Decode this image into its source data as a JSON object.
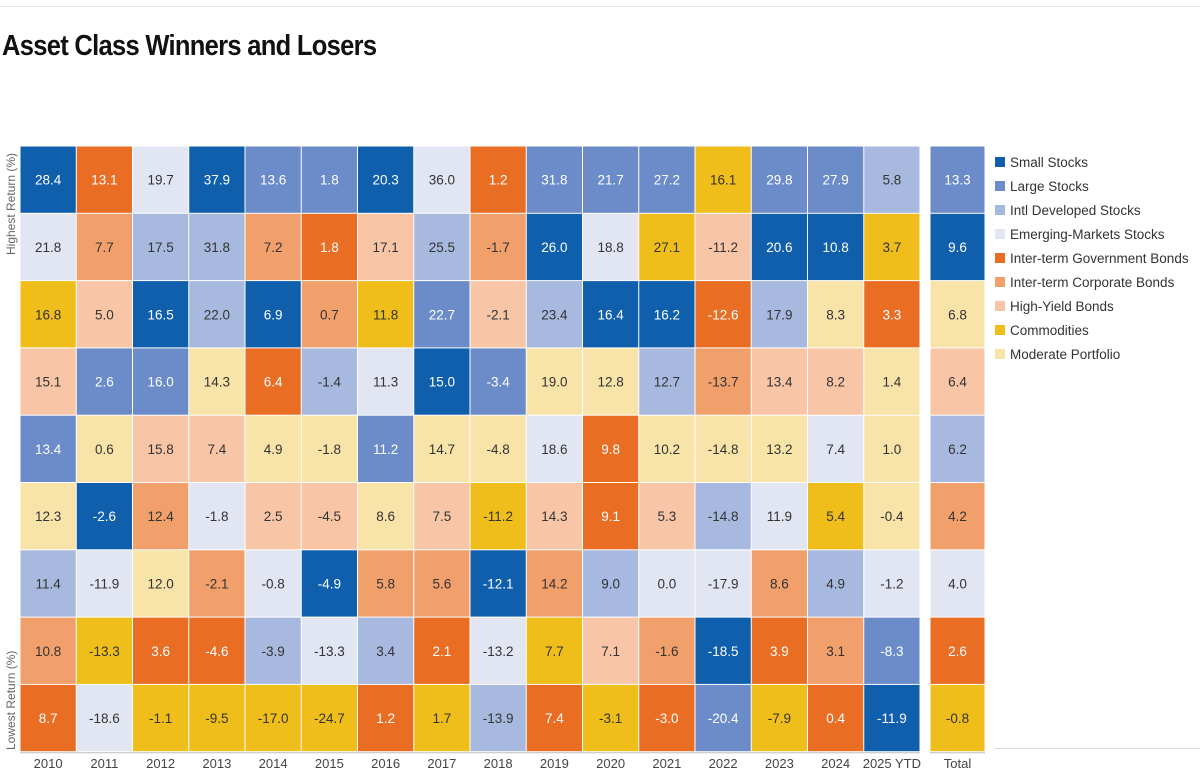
{
  "title": "Asset Class Winners and Losers",
  "labels": {
    "top_axis": "Highest Return (%)",
    "bottom_axis": "Lowest Return (%)"
  },
  "legend": [
    {
      "key": "small",
      "label": "Small Stocks",
      "color": "#0f5fad"
    },
    {
      "key": "large",
      "label": "Large Stocks",
      "color": "#6b8cc9"
    },
    {
      "key": "intl",
      "label": "Intl Developed Stocks",
      "color": "#a8b9e0"
    },
    {
      "key": "em",
      "label": "Emerging-Markets Stocks",
      "color": "#e1e6f2"
    },
    {
      "key": "govt",
      "label": "Inter-term Government Bonds",
      "color": "#ea6d24"
    },
    {
      "key": "corp",
      "label": "Inter-term Corporate Bonds",
      "color": "#f1a06b"
    },
    {
      "key": "hy",
      "label": "High-Yield Bonds",
      "color": "#f8c6a6"
    },
    {
      "key": "comm",
      "label": "Commodities",
      "color": "#efbe1b"
    },
    {
      "key": "mod",
      "label": "Moderate Portfolio",
      "color": "#f8e3a9"
    }
  ],
  "chart_data": {
    "type": "table",
    "title": "Asset Class Winners and Losers",
    "columns": [
      "2010",
      "2011",
      "2012",
      "2013",
      "2014",
      "2015",
      "2016",
      "2017",
      "2018",
      "2019",
      "2020",
      "2021",
      "2022",
      "2023",
      "2024",
      "2025 YTD",
      "Total"
    ],
    "rows": [
      [
        {
          "v": "28.4",
          "c": "small"
        },
        {
          "v": "13.1",
          "c": "govt"
        },
        {
          "v": "19.7",
          "c": "em"
        },
        {
          "v": "37.9",
          "c": "small"
        },
        {
          "v": "13.6",
          "c": "large"
        },
        {
          "v": "1.8",
          "c": "large"
        },
        {
          "v": "20.3",
          "c": "small"
        },
        {
          "v": "36.0",
          "c": "em"
        },
        {
          "v": "1.2",
          "c": "govt"
        },
        {
          "v": "31.8",
          "c": "large"
        },
        {
          "v": "21.7",
          "c": "large"
        },
        {
          "v": "27.2",
          "c": "large"
        },
        {
          "v": "16.1",
          "c": "comm"
        },
        {
          "v": "29.8",
          "c": "large"
        },
        {
          "v": "27.9",
          "c": "large"
        },
        {
          "v": "5.8",
          "c": "intl"
        },
        {
          "v": "13.3",
          "c": "large"
        }
      ],
      [
        {
          "v": "21.8",
          "c": "em"
        },
        {
          "v": "7.7",
          "c": "corp"
        },
        {
          "v": "17.5",
          "c": "intl"
        },
        {
          "v": "31.8",
          "c": "intl"
        },
        {
          "v": "7.2",
          "c": "corp"
        },
        {
          "v": "1.8",
          "c": "govt"
        },
        {
          "v": "17.1",
          "c": "hy"
        },
        {
          "v": "25.5",
          "c": "intl"
        },
        {
          "v": "-1.7",
          "c": "corp"
        },
        {
          "v": "26.0",
          "c": "small"
        },
        {
          "v": "18.8",
          "c": "em"
        },
        {
          "v": "27.1",
          "c": "comm"
        },
        {
          "v": "-11.2",
          "c": "hy"
        },
        {
          "v": "20.6",
          "c": "small"
        },
        {
          "v": "10.8",
          "c": "small"
        },
        {
          "v": "3.7",
          "c": "comm"
        },
        {
          "v": "9.6",
          "c": "small"
        }
      ],
      [
        {
          "v": "16.8",
          "c": "comm"
        },
        {
          "v": "5.0",
          "c": "hy"
        },
        {
          "v": "16.5",
          "c": "small"
        },
        {
          "v": "22.0",
          "c": "intl"
        },
        {
          "v": "6.9",
          "c": "small"
        },
        {
          "v": "0.7",
          "c": "corp"
        },
        {
          "v": "11.8",
          "c": "comm"
        },
        {
          "v": "22.7",
          "c": "large"
        },
        {
          "v": "-2.1",
          "c": "hy"
        },
        {
          "v": "23.4",
          "c": "intl"
        },
        {
          "v": "16.4",
          "c": "small"
        },
        {
          "v": "16.2",
          "c": "small"
        },
        {
          "v": "-12.6",
          "c": "govt"
        },
        {
          "v": "17.9",
          "c": "intl"
        },
        {
          "v": "8.3",
          "c": "mod"
        },
        {
          "v": "3.3",
          "c": "govt"
        },
        {
          "v": "6.8",
          "c": "mod"
        }
      ],
      [
        {
          "v": "15.1",
          "c": "hy"
        },
        {
          "v": "2.6",
          "c": "large"
        },
        {
          "v": "16.0",
          "c": "large"
        },
        {
          "v": "14.3",
          "c": "mod"
        },
        {
          "v": "6.4",
          "c": "govt"
        },
        {
          "v": "-1.4",
          "c": "intl"
        },
        {
          "v": "11.3",
          "c": "em"
        },
        {
          "v": "15.0",
          "c": "small"
        },
        {
          "v": "-3.4",
          "c": "large"
        },
        {
          "v": "19.0",
          "c": "mod"
        },
        {
          "v": "12.8",
          "c": "mod"
        },
        {
          "v": "12.7",
          "c": "intl"
        },
        {
          "v": "-13.7",
          "c": "corp"
        },
        {
          "v": "13.4",
          "c": "hy"
        },
        {
          "v": "8.2",
          "c": "hy"
        },
        {
          "v": "1.4",
          "c": "mod"
        },
        {
          "v": "6.4",
          "c": "hy"
        }
      ],
      [
        {
          "v": "13.4",
          "c": "large"
        },
        {
          "v": "0.6",
          "c": "mod"
        },
        {
          "v": "15.8",
          "c": "hy"
        },
        {
          "v": "7.4",
          "c": "hy"
        },
        {
          "v": "4.9",
          "c": "mod"
        },
        {
          "v": "-1.8",
          "c": "mod"
        },
        {
          "v": "11.2",
          "c": "large"
        },
        {
          "v": "14.7",
          "c": "mod"
        },
        {
          "v": "-4.8",
          "c": "mod"
        },
        {
          "v": "18.6",
          "c": "em"
        },
        {
          "v": "9.8",
          "c": "govt"
        },
        {
          "v": "10.2",
          "c": "mod"
        },
        {
          "v": "-14.8",
          "c": "mod"
        },
        {
          "v": "13.2",
          "c": "mod"
        },
        {
          "v": "7.4",
          "c": "em"
        },
        {
          "v": "1.0",
          "c": "mod"
        },
        {
          "v": "6.2",
          "c": "intl"
        }
      ],
      [
        {
          "v": "12.3",
          "c": "mod"
        },
        {
          "v": "-2.6",
          "c": "small"
        },
        {
          "v": "12.4",
          "c": "corp"
        },
        {
          "v": "-1.8",
          "c": "em"
        },
        {
          "v": "2.5",
          "c": "hy"
        },
        {
          "v": "-4.5",
          "c": "hy"
        },
        {
          "v": "8.6",
          "c": "mod"
        },
        {
          "v": "7.5",
          "c": "hy"
        },
        {
          "v": "-11.2",
          "c": "comm"
        },
        {
          "v": "14.3",
          "c": "hy"
        },
        {
          "v": "9.1",
          "c": "govt"
        },
        {
          "v": "5.3",
          "c": "hy"
        },
        {
          "v": "-14.8",
          "c": "intl"
        },
        {
          "v": "11.9",
          "c": "em"
        },
        {
          "v": "5.4",
          "c": "comm"
        },
        {
          "v": "-0.4",
          "c": "mod"
        },
        {
          "v": "4.2",
          "c": "corp"
        }
      ],
      [
        {
          "v": "11.4",
          "c": "intl"
        },
        {
          "v": "-11.9",
          "c": "em"
        },
        {
          "v": "12.0",
          "c": "mod"
        },
        {
          "v": "-2.1",
          "c": "corp"
        },
        {
          "v": "-0.8",
          "c": "em"
        },
        {
          "v": "-4.9",
          "c": "small"
        },
        {
          "v": "5.8",
          "c": "corp"
        },
        {
          "v": "5.6",
          "c": "corp"
        },
        {
          "v": "-12.1",
          "c": "small"
        },
        {
          "v": "14.2",
          "c": "corp"
        },
        {
          "v": "9.0",
          "c": "intl"
        },
        {
          "v": "0.0",
          "c": "em"
        },
        {
          "v": "-17.9",
          "c": "em"
        },
        {
          "v": "8.6",
          "c": "corp"
        },
        {
          "v": "4.9",
          "c": "intl"
        },
        {
          "v": "-1.2",
          "c": "em"
        },
        {
          "v": "4.0",
          "c": "em"
        }
      ],
      [
        {
          "v": "10.8",
          "c": "corp"
        },
        {
          "v": "-13.3",
          "c": "comm"
        },
        {
          "v": "3.6",
          "c": "govt"
        },
        {
          "v": "-4.6",
          "c": "govt"
        },
        {
          "v": "-3.9",
          "c": "intl"
        },
        {
          "v": "-13.3",
          "c": "em"
        },
        {
          "v": "3.4",
          "c": "intl"
        },
        {
          "v": "2.1",
          "c": "govt"
        },
        {
          "v": "-13.2",
          "c": "em"
        },
        {
          "v": "7.7",
          "c": "comm"
        },
        {
          "v": "7.1",
          "c": "hy"
        },
        {
          "v": "-1.6",
          "c": "corp"
        },
        {
          "v": "-18.5",
          "c": "small"
        },
        {
          "v": "3.9",
          "c": "govt"
        },
        {
          "v": "3.1",
          "c": "corp"
        },
        {
          "v": "-8.3",
          "c": "large"
        },
        {
          "v": "2.6",
          "c": "govt"
        }
      ],
      [
        {
          "v": "8.7",
          "c": "govt"
        },
        {
          "v": "-18.6",
          "c": "em"
        },
        {
          "v": "-1.1",
          "c": "comm"
        },
        {
          "v": "-9.5",
          "c": "comm"
        },
        {
          "v": "-17.0",
          "c": "comm"
        },
        {
          "v": "-24.7",
          "c": "comm"
        },
        {
          "v": "1.2",
          "c": "govt"
        },
        {
          "v": "1.7",
          "c": "comm"
        },
        {
          "v": "-13.9",
          "c": "intl"
        },
        {
          "v": "7.4",
          "c": "govt"
        },
        {
          "v": "-3.1",
          "c": "comm"
        },
        {
          "v": "-3.0",
          "c": "govt"
        },
        {
          "v": "-20.4",
          "c": "large"
        },
        {
          "v": "-7.9",
          "c": "comm"
        },
        {
          "v": "0.4",
          "c": "govt"
        },
        {
          "v": "-11.9",
          "c": "small"
        },
        {
          "v": "-0.8",
          "c": "comm"
        }
      ]
    ]
  }
}
